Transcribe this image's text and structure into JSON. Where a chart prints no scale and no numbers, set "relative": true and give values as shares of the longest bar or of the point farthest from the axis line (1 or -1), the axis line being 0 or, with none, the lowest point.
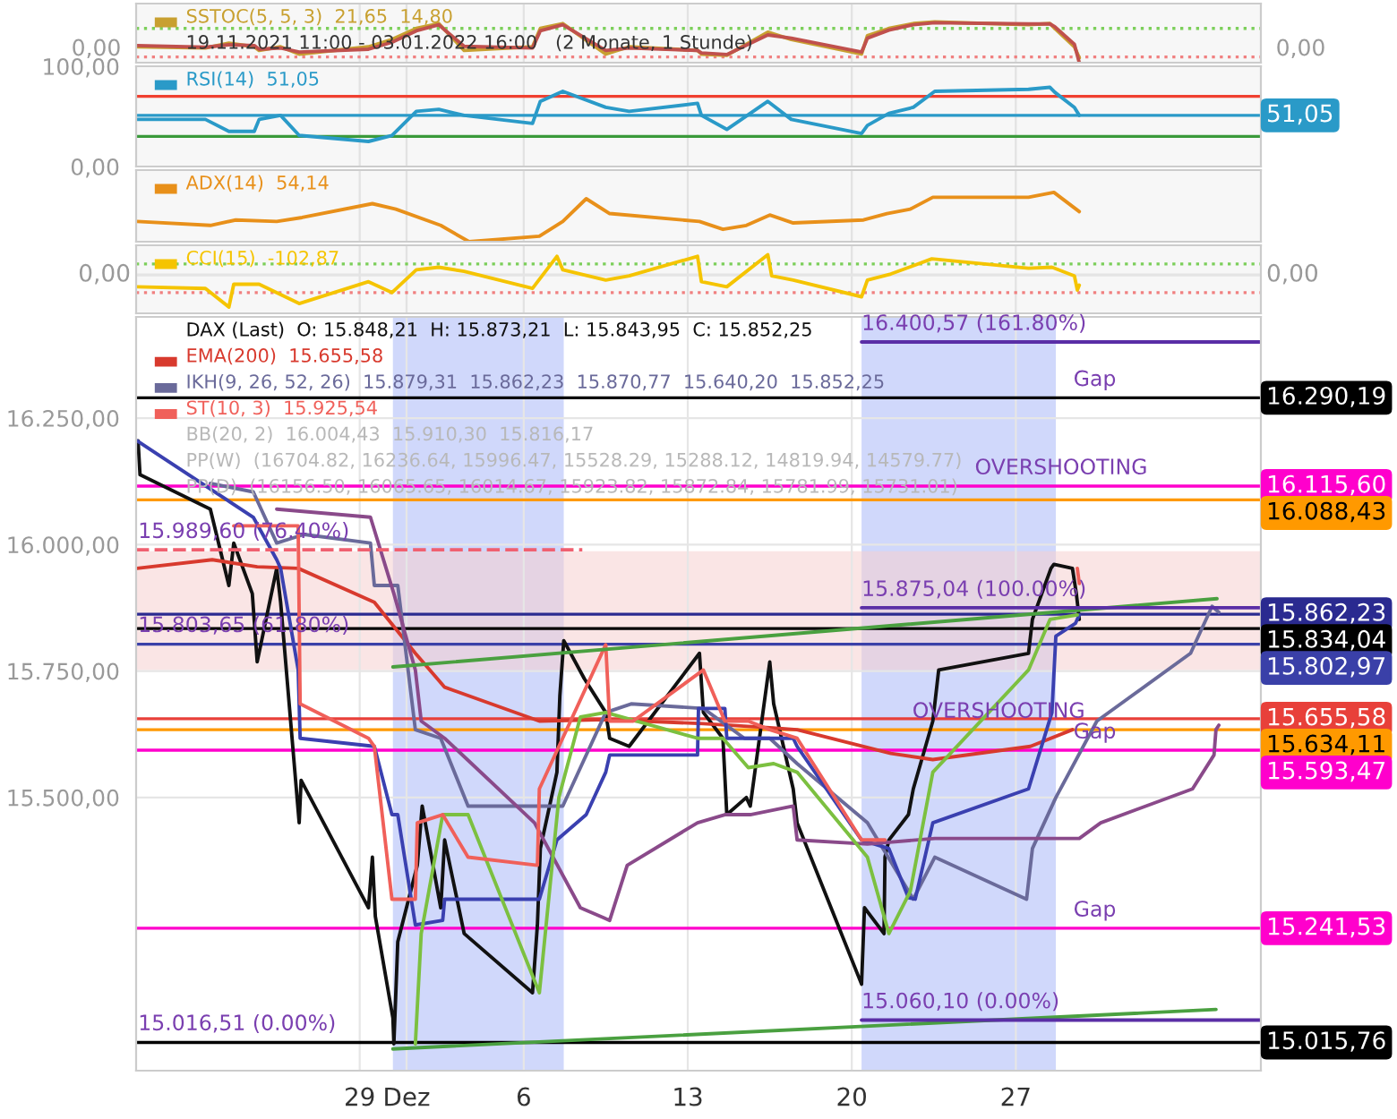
{
  "chart_data": [
    {
      "type": "line",
      "relative": true,
      "xlim": [
        "2021-11-19T11:00",
        "2022-01-06T11:00"
      ],
      "xticks": [
        {
          "value": "2021-11-29",
          "label": null
        },
        {
          "value": "2021-12-01",
          "label": null
        },
        {
          "value": "2021-12-06",
          "label": null
        },
        {
          "value": "2021-12-13",
          "label": null
        },
        {
          "value": "2021-12-20",
          "label": null
        },
        {
          "value": "2021-12-27",
          "label": null
        }
      ],
      "tick_labels": false,
      "grid": "x",
      "legend": "top left",
      "x": [
        "2021-11-19T12:00",
        "2021-11-22T10:00",
        "2021-11-23T10:00",
        "2021-11-24T12:00",
        "2021-11-24T17:00",
        "2021-11-25T15:00",
        "2021-11-26T10:00",
        "2021-11-29T09:00",
        "2021-11-30T09:00",
        "2021-12-01T10:00",
        "2021-12-02T09:00",
        "2021-12-03T11:00",
        "2021-12-06T09:00",
        "2021-12-06T17:00",
        "2021-12-07T16:00",
        "2021-12-09T12:00",
        "2021-12-10T12:00",
        "2021-12-13T10:00",
        "2021-12-13T14:00",
        "2021-12-14T16:00",
        "2021-12-16T10:00",
        "2021-12-17T10:00",
        "2021-12-20T10:00",
        "2021-12-20T16:00",
        "2021-12-21T14:00",
        "2021-12-22T15:00",
        "2021-12-23T13:00",
        "2021-12-27T13:00",
        "2021-12-28T11:00",
        "2021-12-28T16:00",
        "2021-12-29T12:00",
        "2021-12-29T17:00"
      ],
      "series": [
        {
          "name": "SSTOC(5, 5, 3)  21,65  14,80",
          "color": "#c8a030",
          "values": [
            0.39,
            0.36,
            0.48,
            0.39,
            0.3,
            0.39,
            0.21,
            0.39,
            0.57,
            0.84,
            0.96,
            0.3,
            0.39,
            0.84,
            0.96,
            0.21,
            0.39,
            0.3,
            0.21,
            0.18,
            0.75,
            0.57,
            0.21,
            0.66,
            0.84,
            0.96,
            1,
            0.93,
            0.96,
            0.84,
            0.39,
            0.12
          ]
        },
        {
          "color": "#c0504d",
          "values": [
            0.42,
            0.38,
            0.44,
            0.42,
            0.33,
            0.36,
            0.26,
            0.33,
            0.5,
            0.78,
            0.93,
            0.4,
            0.36,
            0.78,
            0.93,
            0.3,
            0.36,
            0.3,
            0.24,
            0.2,
            0.68,
            0.6,
            0.26,
            0.6,
            0.8,
            0.93,
            0.98,
            0.95,
            0.95,
            0.88,
            0.45,
            0
          ]
        }
      ],
      "ref_lines": [
        {
          "axis": "y",
          "value": 0.84,
          "color": "#7ccf5a",
          "line_style": "dotted"
        },
        {
          "axis": "y",
          "value": 0.14,
          "color": "#f08080",
          "line_style": "dotted"
        }
      ],
      "annotations": [
        "19.11.2021 11:00 - 03.01.2022 16:00   (2 Monate, 1 Stunde)",
        {
          "text": "0,00",
          "x": "2021-11-19T11:00",
          "y": 0
        },
        {
          "text": "0,00",
          "x": "2022-01-06T11:00",
          "y": 0
        }
      ]
    },
    {
      "type": "line",
      "xlim": [
        "2021-11-19T11:00",
        "2022-01-06T11:00"
      ],
      "xticks": [
        {
          "value": "2021-11-29",
          "label": null
        },
        {
          "value": "2021-12-01",
          "label": null
        },
        {
          "value": "2021-12-06",
          "label": null
        },
        {
          "value": "2021-12-13",
          "label": null
        },
        {
          "value": "2021-12-20",
          "label": null
        },
        {
          "value": "2021-12-27",
          "label": null
        }
      ],
      "tick_labels": "y",
      "grid": "x",
      "legend": "top left",
      "ylim": [
        0,
        100
      ],
      "yticks": [
        {
          "value": 0,
          "label": "0,00"
        },
        {
          "value": 100,
          "label": "100,00"
        }
      ],
      "x": [
        "2021-11-19T12:00",
        "2021-11-22T10:00",
        "2021-11-23T10:00",
        "2021-11-24T12:00",
        "2021-11-24T17:00",
        "2021-11-25T15:00",
        "2021-11-26T10:00",
        "2021-11-29T09:00",
        "2021-11-30T09:00",
        "2021-12-01T10:00",
        "2021-12-02T09:00",
        "2021-12-03T11:00",
        "2021-12-06T09:00",
        "2021-12-06T17:00",
        "2021-12-07T16:00",
        "2021-12-09T12:00",
        "2021-12-10T12:00",
        "2021-12-13T10:00",
        "2021-12-13T14:00",
        "2021-12-14T16:00",
        "2021-12-16T10:00",
        "2021-12-17T10:00",
        "2021-12-20T10:00",
        "2021-12-20T16:00",
        "2021-12-21T14:00",
        "2021-12-22T15:00",
        "2021-12-23T13:00",
        "2021-12-27T13:00",
        "2021-12-28T11:00",
        "2021-12-28T16:00",
        "2021-12-29T12:00",
        "2021-12-29T17:00"
      ],
      "series": [
        {
          "name": "RSI(14)  51,05",
          "color": "#2a9ac8",
          "values": [
            47,
            47,
            35,
            35,
            47,
            51,
            31,
            25,
            31,
            55,
            57,
            51,
            43,
            65,
            75,
            59,
            55,
            63,
            51,
            37,
            65,
            47,
            33,
            41,
            53,
            59,
            75,
            77,
            79,
            74,
            59,
            51
          ]
        }
      ],
      "ref_lines": [
        {
          "axis": "y",
          "value": 70,
          "color": "#f04030"
        },
        {
          "axis": "y",
          "value": 30,
          "color": "#3a9a3a"
        },
        {
          "axis": "y",
          "value": 51.05,
          "label": "51,05",
          "color": "#2a9ac8"
        }
      ]
    },
    {
      "type": "line",
      "relative": true,
      "xlim": [
        "2021-11-19T11:00",
        "2022-01-06T11:00"
      ],
      "xticks": [
        {
          "value": "2021-11-29",
          "label": null
        },
        {
          "value": "2021-12-01",
          "label": null
        },
        {
          "value": "2021-12-06",
          "label": null
        },
        {
          "value": "2021-12-13",
          "label": null
        },
        {
          "value": "2021-12-20",
          "label": null
        },
        {
          "value": "2021-12-27",
          "label": null
        }
      ],
      "tick_labels": false,
      "grid": "x",
      "legend": "top left",
      "x": [
        "2021-11-19T12:00",
        "2021-11-22T15:00",
        "2021-11-23T17:00",
        "2021-11-25T11:00",
        "2021-11-26T13:00",
        "2021-11-29T13:00",
        "2021-11-30T13:00",
        "2021-12-02T11:00",
        "2021-12-03T16:00",
        "2021-12-06T16:00",
        "2021-12-07T16:00",
        "2021-12-08T16:00",
        "2021-12-09T16:00",
        "2021-12-13T12:00",
        "2021-12-14T12:00",
        "2021-12-15T12:00",
        "2021-12-16T12:00",
        "2021-12-17T12:00",
        "2021-12-20T12:00",
        "2021-12-21T12:00",
        "2021-12-22T12:00",
        "2021-12-23T11:00",
        "2021-12-27T13:00",
        "2021-12-28T15:00",
        "2021-12-29T17:00"
      ],
      "series": [
        {
          "name": "ADX(14)  54,14",
          "color": "#e8901a",
          "values": [
            0.41,
            0.33,
            0.44,
            0.41,
            0.49,
            0.77,
            0.66,
            0.33,
            0,
            0.11,
            0.41,
            0.87,
            0.57,
            0.41,
            0.25,
            0.33,
            0.54,
            0.38,
            0.44,
            0.57,
            0.66,
            0.9,
            0.9,
            1,
            0.61
          ]
        }
      ]
    },
    {
      "type": "line",
      "relative": true,
      "xlim": [
        "2021-11-19T11:00",
        "2022-01-06T11:00"
      ],
      "xticks": [
        {
          "value": "2021-11-29",
          "label": null
        },
        {
          "value": "2021-12-01",
          "label": null
        },
        {
          "value": "2021-12-06",
          "label": null
        },
        {
          "value": "2021-12-13",
          "label": null
        },
        {
          "value": "2021-12-20",
          "label": null
        },
        {
          "value": "2021-12-27",
          "label": null
        }
      ],
      "tick_labels": false,
      "grid": "x",
      "legend": "top left",
      "x": [
        "2021-11-19T12:00",
        "2021-11-22T10:00",
        "2021-11-23T10:00",
        "2021-11-23T15:00",
        "2021-11-24T17:00",
        "2021-11-26T10:00",
        "2021-11-29T09:00",
        "2021-11-30T09:00",
        "2021-12-01T10:00",
        "2021-12-02T09:00",
        "2021-12-03T11:00",
        "2021-12-06T09:00",
        "2021-12-07T10:00",
        "2021-12-07T16:00",
        "2021-12-09T12:00",
        "2021-12-10T12:00",
        "2021-12-13T10:00",
        "2021-12-13T14:00",
        "2021-12-14T16:00",
        "2021-12-16T10:00",
        "2021-12-16T14:00",
        "2021-12-17T12:00",
        "2021-12-20T10:00",
        "2021-12-20T16:00",
        "2021-12-21T16:00",
        "2021-12-23T10:00",
        "2021-12-27T13:00",
        "2021-12-28T13:00",
        "2021-12-29T12:00",
        "2021-12-29T15:00",
        "2021-12-29T17:00"
      ],
      "series": [
        {
          "name": "CCI(15)  -102,87",
          "color": "#f5c400",
          "values": [
            -0.37,
            -0.42,
            -1,
            -0.29,
            -0.29,
            -0.89,
            -0.21,
            -0.55,
            0.16,
            0.24,
            0.11,
            -0.42,
            0.58,
            0.16,
            -0.16,
            -0.03,
            0.58,
            -0.21,
            -0.37,
            0.63,
            -0.03,
            -0.16,
            -0.68,
            -0.16,
            0.03,
            0.5,
            0.21,
            0.24,
            -0.03,
            -0.47,
            -0.32
          ]
        }
      ],
      "ref_lines": [
        {
          "axis": "y",
          "value": 0.34,
          "color": "#7ccf5a",
          "line_style": "dotted"
        },
        {
          "axis": "y",
          "value": -0.55,
          "color": "#f08080",
          "line_style": "dotted"
        },
        {
          "axis": "y",
          "value": 0,
          "label": "0,00",
          "color": "#e4e4e4"
        }
      ]
    },
    {
      "type": "line",
      "title": "DAX (Last)  O: 15.848,21  H: 15.873,21  L: 15.843,95  C: 15.852,25",
      "legend": "top left",
      "grid": true,
      "xlim": [
        "2021-11-19T11:00",
        "2022-01-06T11:00"
      ],
      "xticks": [
        {
          "value": "2021-11-29",
          "label": "29"
        },
        {
          "value": "2021-12-01",
          "label": "Dez"
        },
        {
          "value": "2021-12-06",
          "label": "6"
        },
        {
          "value": "2021-12-13",
          "label": "13"
        },
        {
          "value": "2021-12-20",
          "label": "20"
        },
        {
          "value": "2021-12-27",
          "label": "27"
        }
      ],
      "ylim": [
        14960,
        16450
      ],
      "yticks": [
        {
          "value": 15500,
          "label": "15.500,00"
        },
        {
          "value": 15750,
          "label": "15.750,00"
        },
        {
          "value": 16000,
          "label": "16.000,00"
        },
        {
          "value": 16250,
          "label": "16.250,00"
        }
      ],
      "series": [
        {
          "color": "#111111",
          "x": [
            "2021-11-19T13:00",
            "2021-11-19T15:00",
            "2021-11-22T15:00",
            "2021-11-23T10:00",
            "2021-11-23T15:00",
            "2021-11-24T10:00",
            "2021-11-24T15:00",
            "2021-11-25T11:00",
            "2021-11-25T15:00",
            "2021-11-26T10:00",
            "2021-11-26T12:00",
            "2021-11-29T09:00",
            "2021-11-29T13:00",
            "2021-11-29T16:00",
            "2021-11-30T10:00",
            "2021-11-30T11:00",
            "2021-11-30T15:00",
            "2021-12-01T11:00",
            "2021-12-01T16:00",
            "2021-12-02T11:00",
            "2021-12-02T15:00",
            "2021-12-03T11:00",
            "2021-12-06T09:00",
            "2021-12-06T14:00",
            "2021-12-06T17:00",
            "2021-12-07T10:00",
            "2021-12-07T13:00",
            "2021-12-07T17:00",
            "2021-12-08T14:00",
            "2021-12-09T12:00",
            "2021-12-09T16:00",
            "2021-12-10T12:00",
            "2021-12-13T12:00",
            "2021-12-13T16:00",
            "2021-12-14T12:00",
            "2021-12-14T16:00",
            "2021-12-15T12:00",
            "2021-12-15T16:00",
            "2021-12-16T12:00",
            "2021-12-16T16:00",
            "2021-12-17T12:00",
            "2021-12-17T16:00",
            "2021-12-20T10:00",
            "2021-12-20T13:00",
            "2021-12-21T09:00",
            "2021-12-21T10:00",
            "2021-12-21T14:00",
            "2021-12-22T10:00",
            "2021-12-22T15:00",
            "2021-12-23T11:00",
            "2021-12-23T17:00",
            "2021-12-27T13:00",
            "2021-12-27T17:00",
            "2021-12-28T12:00",
            "2021-12-28T15:00",
            "2021-12-29T10:00",
            "2021-12-29T14:00",
            "2021-12-29T17:00"
          ],
          "values": [
            16205,
            16138,
            16070,
            15919,
            16003,
            15903,
            15768,
            15953,
            15886,
            15450,
            15534,
            15282,
            15382,
            15265,
            15064,
            15013,
            15215,
            15366,
            15483,
            15282,
            15416,
            15231,
            15114,
            15248,
            15399,
            15550,
            15701,
            15810,
            15735,
            15668,
            15617,
            15601,
            15785,
            15668,
            15617,
            15466,
            15500,
            15483,
            15768,
            15685,
            15517,
            15450,
            15131,
            15282,
            15231,
            15382,
            15416,
            15466,
            15517,
            15651,
            15752,
            15785,
            15852,
            15953,
            15961,
            15953,
            15903,
            15852
          ]
        },
        {
          "name": "EMA(200)  15.655,58",
          "color": "#d83a2e",
          "x": [
            "2021-11-19T12:00",
            "2021-11-22T17:00",
            "2021-11-24T15:00",
            "2021-11-26T09:00",
            "2021-11-29T15:00",
            "2021-12-01T09:00",
            "2021-12-02T15:00",
            "2021-12-06T16:00",
            "2021-12-09T12:00",
            "2021-12-13T16:00",
            "2021-12-16T12:00",
            "2021-12-17T16:00",
            "2021-12-21T16:00",
            "2021-12-23T11:00",
            "2021-12-27T15:00",
            "2021-12-29T10:00"
          ],
          "values": [
            15953,
            15970,
            15956,
            15953,
            15886,
            15785,
            15718,
            15651,
            15654,
            15646,
            15638,
            15634,
            15587,
            15575,
            15601,
            15634
          ]
        },
        {
          "name": "IKH(9, 26, 52, 26)  15.879,31  15.862,23  15.870,77  15.640,20  15.852,25",
          "color": "#6a6a9a",
          "x": [
            "2021-11-22T15:00",
            "2021-11-24T11:00",
            "2021-11-25T11:00",
            "2021-11-26T15:00",
            "2021-11-29T11:00",
            "2021-11-29T15:00",
            "2021-11-30T15:00",
            "2021-12-01T09:00",
            "2021-12-02T11:00",
            "2021-12-03T15:00",
            "2021-12-07T16:00",
            "2021-12-09T12:00",
            "2021-12-10T14:00",
            "2021-12-13T16:00",
            "2021-12-15T10:00",
            "2021-12-16T12:00",
            "2021-12-17T16:00",
            "2021-12-20T16:00",
            "2021-12-22T15:00",
            "2021-12-23T13:00",
            "2021-12-27T11:00",
            "2021-12-27T17:00",
            "2021-12-28T17:00",
            "2021-12-30T11:00",
            "2022-01-03T11:00",
            "2022-01-04T09:00",
            "2022-01-04T16:00"
          ],
          "values": [
            16121,
            16104,
            16003,
            16020,
            16003,
            15919,
            15919,
            15634,
            15617,
            15483,
            15483,
            15668,
            15685,
            15676,
            15617,
            15617,
            15567,
            15450,
            15299,
            15382,
            15299,
            15399,
            15500,
            15651,
            15785,
            15878,
            15866
          ]
        },
        {
          "color": "#3a40b0",
          "x": [
            "2021-11-19T12:00",
            "2021-11-24T11:00",
            "2021-11-25T11:00",
            "2021-11-25T15:00",
            "2021-11-26T09:00",
            "2021-11-26T11:00",
            "2021-11-29T15:00",
            "2021-11-30T09:00",
            "2021-11-30T15:00",
            "2021-12-01T09:00",
            "2021-12-02T13:00",
            "2021-12-02T15:00",
            "2021-12-06T16:00",
            "2021-12-07T10:00",
            "2021-12-08T16:00",
            "2021-12-09T12:00",
            "2021-12-09T16:00",
            "2021-12-13T10:00",
            "2021-12-13T11:00",
            "2021-12-14T14:00",
            "2021-12-14T16:00",
            "2021-12-17T12:00",
            "2021-12-17T16:00",
            "2021-12-20T10:00",
            "2021-12-21T14:00",
            "2021-12-22T10:00",
            "2021-12-22T17:00",
            "2021-12-23T11:00",
            "2021-12-27T13:00",
            "2021-12-28T13:00",
            "2021-12-28T17:00",
            "2021-12-29T13:00",
            "2021-12-29T17:00"
          ],
          "values": [
            16205,
            16054,
            15970,
            15953,
            15752,
            15617,
            15601,
            15466,
            15466,
            15248,
            15257,
            15299,
            15299,
            15416,
            15466,
            15550,
            15584,
            15584,
            15676,
            15676,
            15617,
            15617,
            15601,
            15416,
            15399,
            15302,
            15299,
            15450,
            15517,
            15668,
            15819,
            15844,
            15861
          ]
        },
        {
          "color": "#8a4a8a",
          "x": [
            "2021-11-25T11:00",
            "2021-11-29T11:00",
            "2021-11-30T11:00",
            "2021-12-01T09:00",
            "2021-12-01T15:00",
            "2021-12-02T15:00",
            "2021-12-06T11:00",
            "2021-12-08T10:00",
            "2021-12-09T10:00",
            "2021-12-09T16:00",
            "2021-12-10T10:00",
            "2021-12-13T10:00",
            "2021-12-14T14:00",
            "2021-12-15T16:00",
            "2021-12-17T12:00",
            "2021-12-17T16:00",
            "2021-12-20T16:00",
            "2021-12-23T13:00",
            "2021-12-29T17:00",
            "2021-12-30T15:00",
            "2022-01-03T13:00",
            "2022-01-04T11:00",
            "2022-01-04T13:00",
            "2022-01-04T16:00"
          ],
          "values": [
            16070,
            16054,
            15903,
            15752,
            15651,
            15617,
            15450,
            15282,
            15262,
            15257,
            15366,
            15450,
            15466,
            15466,
            15483,
            15416,
            15408,
            15419,
            15419,
            15450,
            15517,
            15584,
            15634,
            15643
          ]
        },
        {
          "color": "#7cc040",
          "x": [
            "2021-12-01T09:00",
            "2021-12-01T15:00",
            "2021-12-02T13:00",
            "2021-12-03T15:00",
            "2021-12-06T16:00",
            "2021-12-07T12:00",
            "2021-12-08T10:00",
            "2021-12-09T12:00",
            "2021-12-13T10:00",
            "2021-12-14T12:00",
            "2021-12-15T14:00",
            "2021-12-16T16:00",
            "2021-12-17T16:00",
            "2021-12-20T16:00",
            "2021-12-21T14:00",
            "2021-12-22T12:00",
            "2021-12-23T11:00",
            "2021-12-27T13:00",
            "2021-12-28T11:00",
            "2021-12-29T15:00"
          ],
          "values": [
            15013,
            15231,
            15466,
            15466,
            15114,
            15500,
            15659,
            15668,
            15617,
            15617,
            15559,
            15567,
            15550,
            15382,
            15231,
            15315,
            15550,
            15752,
            15852,
            15861
          ]
        },
        {
          "name": "ST(10, 3)  15.925,54",
          "color": "#f0605a",
          "x": [
            "2021-11-23T15:00",
            "2021-11-26T09:00",
            "2021-11-26T11:00",
            "2021-11-29T09:00",
            "2021-11-29T15:00",
            "2021-11-30T09:00",
            "2021-12-01T09:00",
            "2021-12-01T11:00",
            "2021-12-02T13:00",
            "2021-12-03T15:00",
            "2021-12-06T14:00",
            "2021-12-06T16:00",
            "2021-12-09T12:00",
            "2021-12-09T16:00",
            "2021-12-10T16:00",
            "2021-12-13T16:00",
            "2021-12-14T14:00",
            "2021-12-15T14:00",
            "2021-12-16T12:00",
            "2021-12-17T16:00",
            "2021-12-20T10:00",
            "2021-12-21T10:00",
            "2021-12-21T13:00",
            "2021-12-29T15:00",
            "2021-12-29T17:00"
          ],
          "values": [
            16037,
            16037,
            15685,
            15617,
            15601,
            15299,
            15299,
            15450,
            15466,
            15382,
            15366,
            15517,
            15802,
            15651,
            15651,
            15752,
            15651,
            15651,
            15634,
            15617,
            15416,
            15416,
            null,
            15953,
            15923
          ]
        },
        {
          "color": "#4aa040",
          "x": [
            "2021-11-30T10:00",
            "2022-01-04T14:00"
          ],
          "values": [
            15758,
            15893
          ]
        },
        {
          "color": "#4aa040",
          "x": [
            "2021-11-30T10:00",
            "2022-01-04T13:00"
          ],
          "values": [
            15003,
            15081
          ]
        },
        {
          "color": "#5a2ea6",
          "x": [
            "2021-12-20T10:00",
            "2022-01-06T11:00"
          ],
          "values": [
            16400.57,
            16400.57
          ]
        },
        {
          "color": "#5a2ea6",
          "x": [
            "2021-12-20T10:00",
            "2022-01-06T11:00"
          ],
          "values": [
            15875.04,
            15875.04
          ]
        },
        {
          "color": "#5a2ea6",
          "x": [
            "2021-12-20T10:00",
            "2022-01-06T11:00"
          ],
          "values": [
            15060.1,
            15060.1
          ]
        },
        {
          "color": "#f06070",
          "line_style": "dashed",
          "x": [
            "2021-11-19T11:00",
            "2021-12-08T12:00"
          ],
          "values": [
            15989.6,
            15989.6
          ]
        }
      ],
      "ref_lines": [
        {
          "axis": "y",
          "value": 16290.19,
          "label": "16.290,19",
          "color": "#000000"
        },
        {
          "axis": "y",
          "value": 16115.6,
          "label": "16.115,60",
          "color": "#ff00cc"
        },
        {
          "axis": "y",
          "value": 16088.43,
          "label": "16.088,43",
          "color": "#ff9900"
        },
        {
          "axis": "y",
          "value": 15862.23,
          "label": "15.862,23",
          "color": "#2a2a90"
        },
        {
          "axis": "y",
          "value": 15834.04,
          "label": "15.834,04",
          "color": "#000000"
        },
        {
          "axis": "y",
          "value": 15802.97,
          "label": "15.802,97",
          "color": "#3a40a8"
        },
        {
          "axis": "y",
          "value": 15655.58,
          "label": "15.655,58",
          "color": "#e8403a"
        },
        {
          "axis": "y",
          "value": 15634.11,
          "label": "15.634,11",
          "color": "#ff9900"
        },
        {
          "axis": "y",
          "value": 15593.47,
          "label": "15.593,47",
          "color": "#ff00cc"
        },
        {
          "axis": "y",
          "value": 15241.53,
          "label": "15.241,53",
          "color": "#ff00cc"
        },
        {
          "axis": "y",
          "value": 15015.76,
          "label": "15.015,76",
          "color": "#000000"
        }
      ],
      "bands": [
        {
          "axis": "x",
          "from": "2021-11-30T10:00",
          "to": "2021-12-07T17:00",
          "color": "#aab8f8"
        },
        {
          "axis": "x",
          "from": "2021-12-20T10:00",
          "to": "2021-12-28T17:00",
          "color": "#aab8f8"
        },
        {
          "axis": "y",
          "from": 15752,
          "to": 15987,
          "color": "#f6d0d0"
        }
      ],
      "annotations": [
        "BB(20, 2)  16.004,43  15.910,30  15.816,17",
        "PP(W)  (16704.82, 16236.64, 15996.47, 15528.29, 15288.12, 14819.94, 14579.77)",
        "PP(D)  (16156.50, 16065.65, 16014.67, 15923.82, 15872.84, 15781.99, 15731.01)",
        {
          "text": "15.989,60 (76.40%)",
          "x": "2021-11-19T13:00",
          "y": 15989.6
        },
        {
          "text": "15.803,65 (61.80%)",
          "x": "2021-11-19T13:00",
          "y": 15803.65
        },
        {
          "text": "15.016,51 (0.00%)",
          "x": "2021-11-19T13:00",
          "y": 15016.51
        },
        {
          "text": "16.400,57 (161.80%)",
          "x": "2021-12-20T10:00",
          "y": 16400.57
        },
        {
          "text": "15.875,04 (100.00%)",
          "x": "2021-12-20T10:00",
          "y": 15875.04
        },
        {
          "text": "15.060,10 (0.00%)",
          "x": "2021-12-20T10:00",
          "y": 15060.1
        },
        {
          "text": "OVERSHOOTING",
          "x": "2021-12-25T06:00",
          "y": 16115.6
        },
        {
          "text": "OVERSHOOTING",
          "x": "2021-12-22T14:00",
          "y": 15634.11
        },
        {
          "text": "Gap",
          "x": "2021-12-29T11:00",
          "y": 16290.19
        },
        {
          "text": "Gap",
          "x": "2021-12-29T11:00",
          "y": 15593.47
        },
        {
          "text": "Gap",
          "x": "2021-12-29T11:00",
          "y": 15241.53
        }
      ]
    }
  ]
}
